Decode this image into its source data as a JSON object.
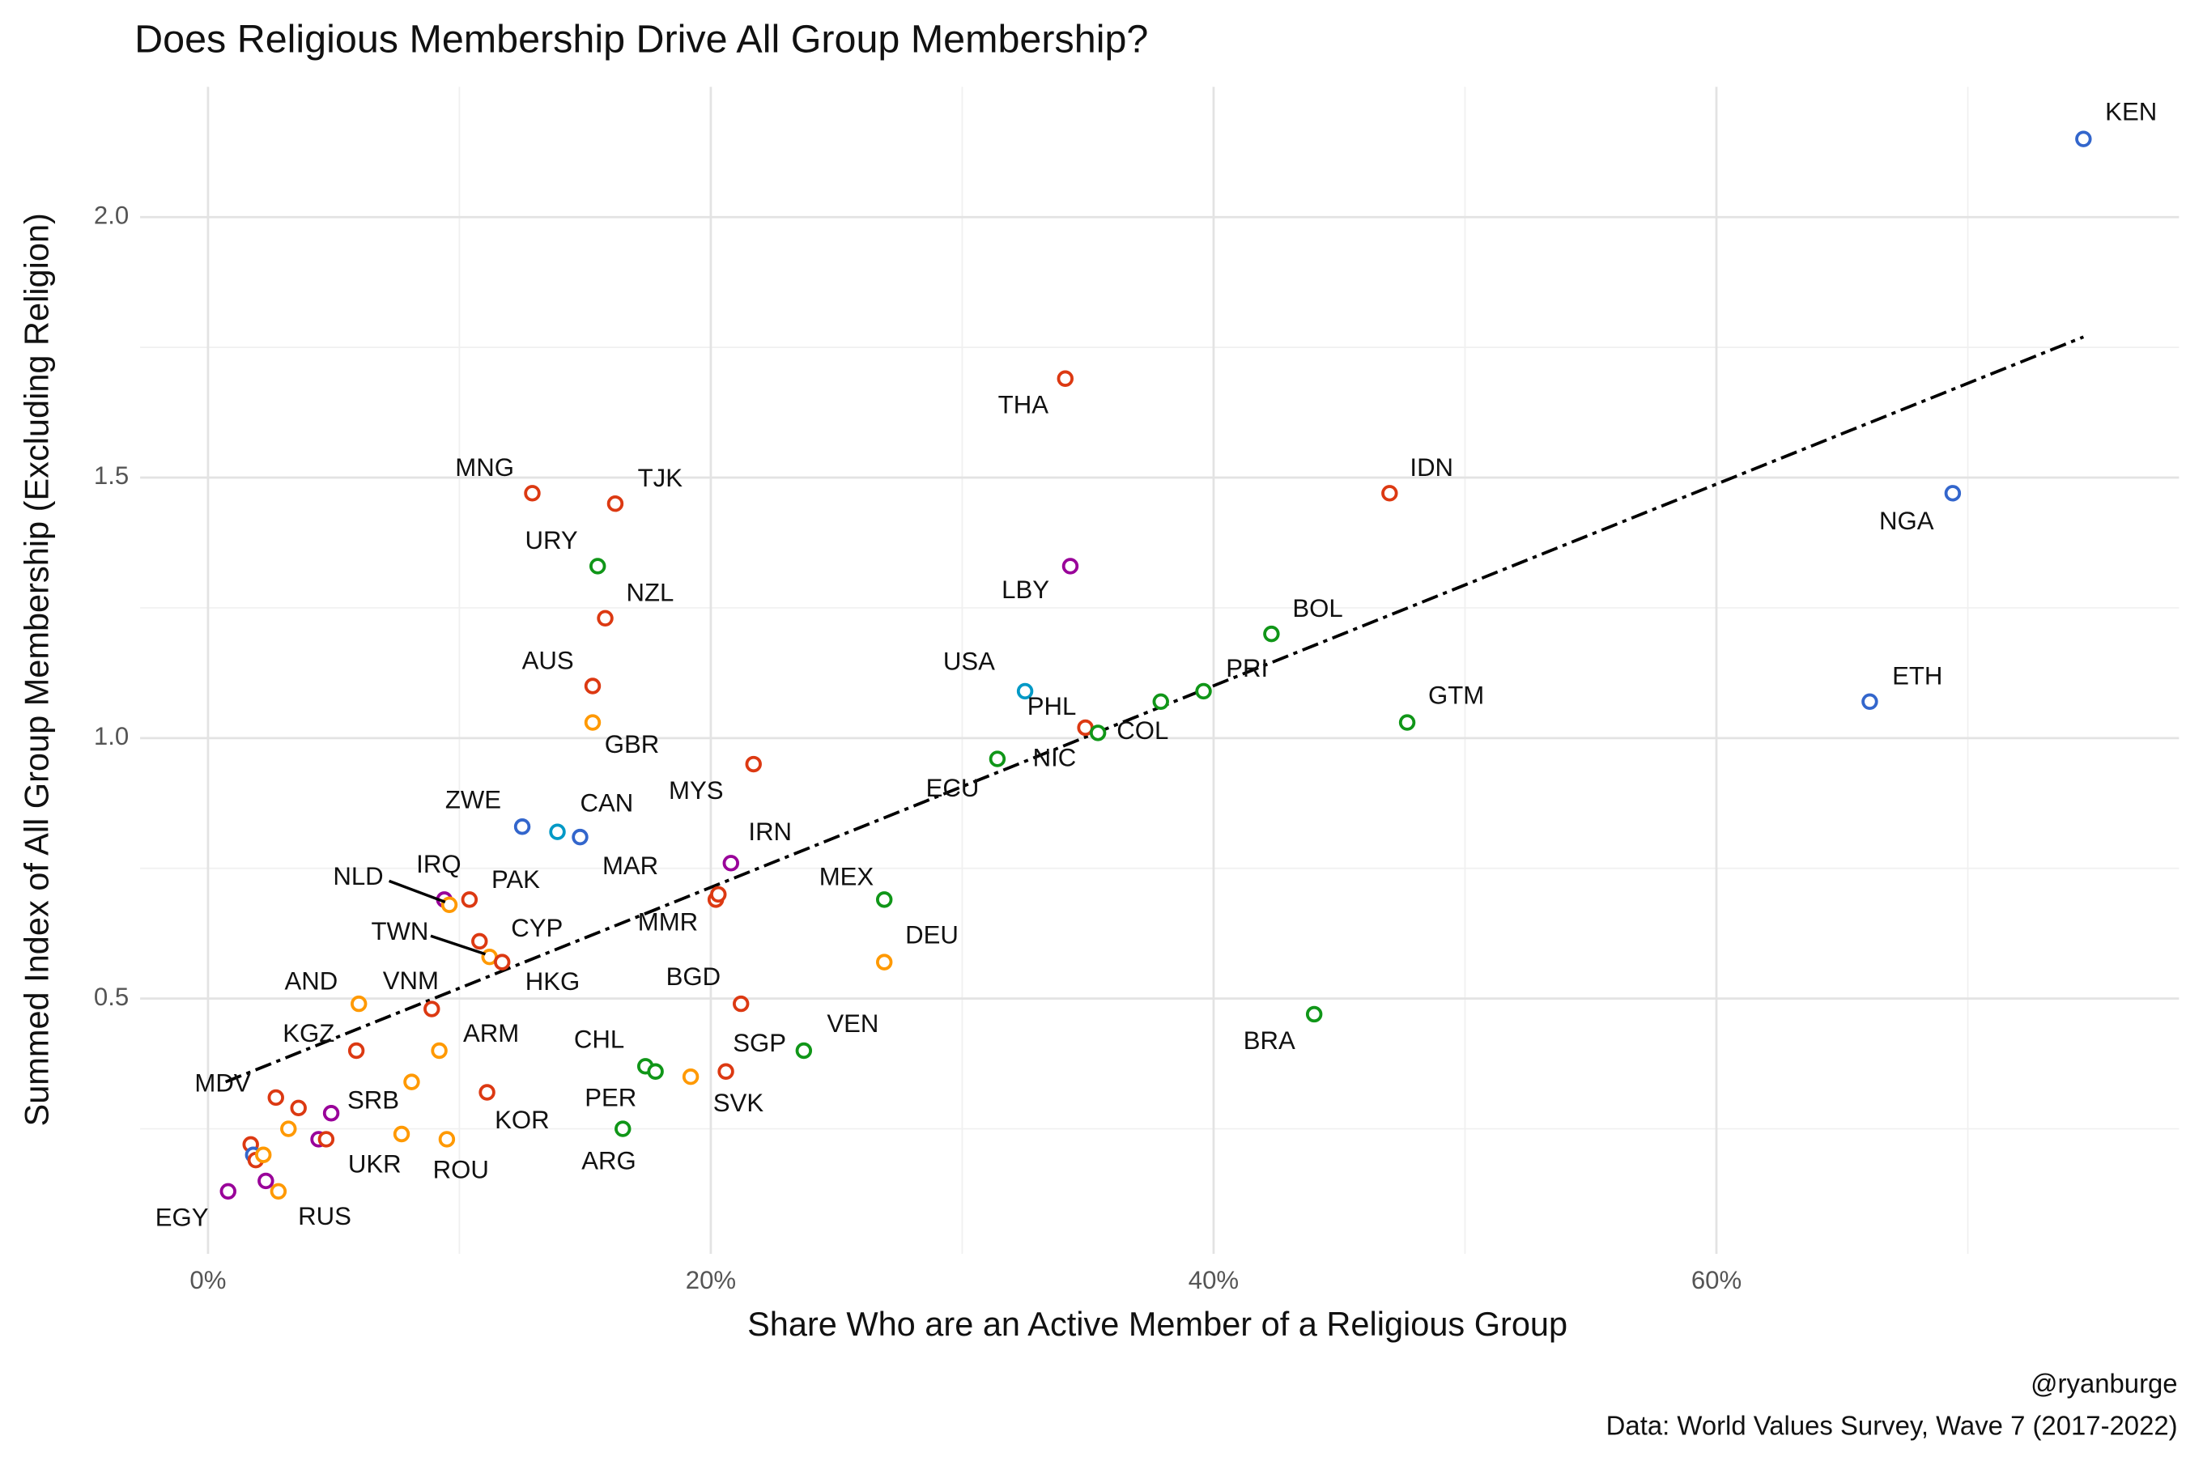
{
  "chart_data": {
    "type": "scatter",
    "title": "Does Religious Membership Drive All Group Membership?",
    "x_label": "Share Who are an Active Member of a Religious Group",
    "y_label": "Summed Index of All Group Membership (Excluding Religion)",
    "caption": [
      "@ryanburge",
      "Data: World Values Survey, Wave 7 (2017-2022)"
    ],
    "xlim": [
      -2.7,
      78.4
    ],
    "ylim": [
      0.01,
      2.25
    ],
    "xticks": [
      {
        "value": 0,
        "label": "0%"
      },
      {
        "value": 20,
        "label": "20%"
      },
      {
        "value": 40,
        "label": "40%"
      },
      {
        "value": 60,
        "label": "60%"
      }
    ],
    "yticks": [
      0.5,
      {
        "value": 1,
        "label": "1.0"
      },
      1.5,
      {
        "value": 2,
        "label": "2.0"
      }
    ],
    "xminor": [
      10,
      30,
      50,
      70
    ],
    "yminor": [
      0.25,
      0.75,
      1.25,
      1.75
    ],
    "grid": true,
    "labels": [
      "KEN",
      "NGA",
      "ETH",
      "THA",
      "IDN",
      "LBY",
      "USA",
      "PHL",
      "NIC",
      "COL",
      "PRI",
      "BOL",
      "GTM",
      "ECU",
      "MYS",
      "GBR",
      "AUS",
      "NZL",
      "URY",
      "MNG",
      "TJK",
      "ZWE",
      "CAN",
      "IRN",
      "MAR",
      "MMR",
      "MEX",
      "DEU",
      "BGD",
      "VEN",
      "SGP",
      "SVK",
      "CHL",
      "PER",
      "ARG",
      "BRA",
      "IRQ",
      "PAK",
      "NLD",
      "CYP",
      "TWN",
      "HKG",
      "AND",
      "VNM",
      "ARM",
      "KGZ",
      "KOR",
      "ROU",
      "MDV",
      "SRB",
      "UKR",
      "RUS",
      "EGY",
      null,
      null,
      null,
      null,
      null,
      null,
      null,
      null,
      null,
      null,
      null
    ],
    "x": [
      74.6,
      69.4,
      66.1,
      34.1,
      47.0,
      34.3,
      32.5,
      34.9,
      35.4,
      37.9,
      39.6,
      42.3,
      47.7,
      31.4,
      21.7,
      15.3,
      15.3,
      15.8,
      15.5,
      12.9,
      16.2,
      12.5,
      14.8,
      20.8,
      20.2,
      20.3,
      26.9,
      26.9,
      21.2,
      23.7,
      20.6,
      19.2,
      17.4,
      17.8,
      16.5,
      44.0,
      9.4,
      10.4,
      9.6,
      10.8,
      11.2,
      11.7,
      6.0,
      8.9,
      9.2,
      5.9,
      11.1,
      9.5,
      2.7,
      4.9,
      4.4,
      2.8,
      0.8,
      13.9,
      8.1,
      7.7,
      3.6,
      3.2,
      4.7,
      1.7,
      1.8,
      1.9,
      2.2,
      2.3
    ],
    "values": [
      2.15,
      1.47,
      1.07,
      1.69,
      1.47,
      1.33,
      1.09,
      1.02,
      1.01,
      1.07,
      1.09,
      1.2,
      1.03,
      0.96,
      0.95,
      1.03,
      1.1,
      1.23,
      1.33,
      1.47,
      1.45,
      0.83,
      0.81,
      0.76,
      0.69,
      0.7,
      0.69,
      0.57,
      0.49,
      0.4,
      0.36,
      0.35,
      0.37,
      0.36,
      0.25,
      0.47,
      0.69,
      0.69,
      0.68,
      0.61,
      0.58,
      0.57,
      0.49,
      0.48,
      0.4,
      0.4,
      0.32,
      0.23,
      0.31,
      0.28,
      0.23,
      0.13,
      0.13,
      0.82,
      0.34,
      0.24,
      0.29,
      0.25,
      0.23,
      0.22,
      0.2,
      0.19,
      0.2,
      0.15
    ],
    "colors": [
      "#3366cc",
      "#3366cc",
      "#3366cc",
      "#dc3912",
      "#dc3912",
      "#990099",
      "#0099c6",
      "#dc3912",
      "#109618",
      "#109618",
      "#109618",
      "#109618",
      "#109618",
      "#109618",
      "#dc3912",
      "#ff9900",
      "#dc3912",
      "#dc3912",
      "#109618",
      "#dc3912",
      "#dc3912",
      "#3366cc",
      "#3366cc",
      "#990099",
      "#dc3912",
      "#dc3912",
      "#109618",
      "#ff9900",
      "#dc3912",
      "#109618",
      "#dc3912",
      "#ff9900",
      "#109618",
      "#109618",
      "#109618",
      "#109618",
      "#990099",
      "#dc3912",
      "#ff9900",
      "#dc3912",
      "#ff9900",
      "#dc3912",
      "#ff9900",
      "#dc3912",
      "#ff9900",
      "#dc3912",
      "#dc3912",
      "#ff9900",
      "#dc3912",
      "#990099",
      "#990099",
      "#ff9900",
      "#990099",
      "#0099c6",
      "#ff9900",
      "#ff9900",
      "#dc3912",
      "#ff9900",
      "#dc3912",
      "#dc3912",
      "#3366cc",
      "#dc3912",
      "#ff9900",
      "#990099"
    ],
    "trend": {
      "x": [
        0.7,
        74.6
      ],
      "y": [
        0.34,
        1.77
      ]
    }
  }
}
